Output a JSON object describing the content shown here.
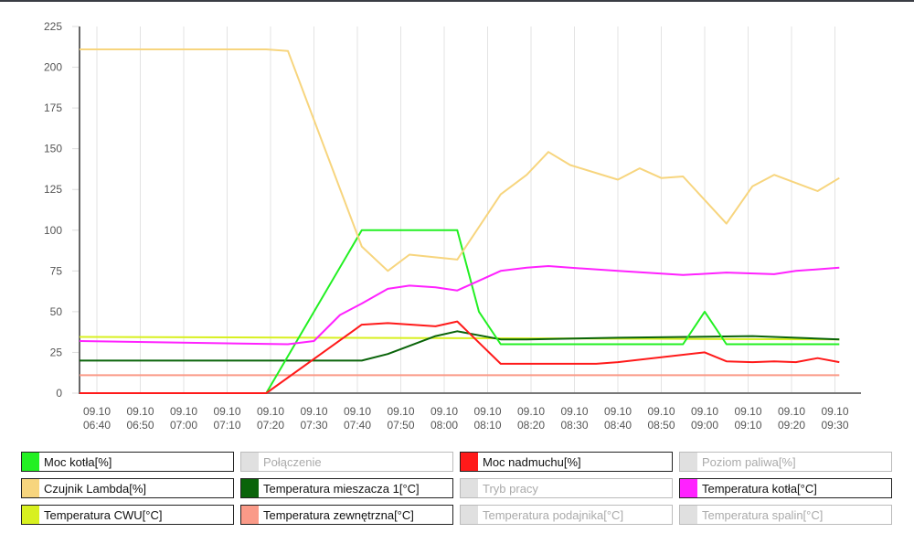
{
  "chart_data": {
    "type": "line",
    "title": "",
    "xlabel": "",
    "ylabel": "",
    "ylim": [
      0,
      225
    ],
    "yticks": [
      0,
      25,
      50,
      75,
      100,
      125,
      150,
      175,
      200,
      225
    ],
    "x_unit": "minutes since 09.10 06:40",
    "xlim": [
      -4,
      176
    ],
    "xticks": [
      {
        "m": 0,
        "d": "09.10",
        "t": "06:40"
      },
      {
        "m": 10,
        "d": "09.10",
        "t": "06:50"
      },
      {
        "m": 20,
        "d": "09.10",
        "t": "07:00"
      },
      {
        "m": 30,
        "d": "09.10",
        "t": "07:10"
      },
      {
        "m": 40,
        "d": "09.10",
        "t": "07:20"
      },
      {
        "m": 50,
        "d": "09.10",
        "t": "07:30"
      },
      {
        "m": 60,
        "d": "09.10",
        "t": "07:40"
      },
      {
        "m": 70,
        "d": "09.10",
        "t": "07:50"
      },
      {
        "m": 80,
        "d": "09.10",
        "t": "08:00"
      },
      {
        "m": 90,
        "d": "09.10",
        "t": "08:10"
      },
      {
        "m": 100,
        "d": "09.10",
        "t": "08:20"
      },
      {
        "m": 110,
        "d": "09.10",
        "t": "08:30"
      },
      {
        "m": 120,
        "d": "09.10",
        "t": "08:40"
      },
      {
        "m": 130,
        "d": "09.10",
        "t": "08:50"
      },
      {
        "m": 140,
        "d": "09.10",
        "t": "09:00"
      },
      {
        "m": 150,
        "d": "09.10",
        "t": "09:10"
      },
      {
        "m": 160,
        "d": "09.10",
        "t": "09:20"
      },
      {
        "m": 170,
        "d": "09.10",
        "t": "09:30"
      }
    ],
    "grid": "vertical",
    "legend_position": "bottom",
    "series": [
      {
        "name": "Moc kotła[%]",
        "color": "#22f022",
        "enabled": true,
        "points": [
          [
            -4,
            0
          ],
          [
            39,
            0
          ],
          [
            61,
            100
          ],
          [
            83,
            100
          ],
          [
            88,
            50
          ],
          [
            93,
            30
          ],
          [
            135,
            30
          ],
          [
            140,
            50
          ],
          [
            145,
            30
          ],
          [
            171,
            30
          ]
        ]
      },
      {
        "name": "Połączenie",
        "color": "#e0e0e0",
        "enabled": false,
        "points": []
      },
      {
        "name": "Moc nadmuchu[%]",
        "color": "#ff1a1a",
        "enabled": true,
        "points": [
          [
            -4,
            0
          ],
          [
            39,
            0
          ],
          [
            61,
            42
          ],
          [
            67,
            43
          ],
          [
            78,
            41
          ],
          [
            83,
            44
          ],
          [
            93,
            18
          ],
          [
            115,
            18
          ],
          [
            120,
            19
          ],
          [
            140,
            25
          ],
          [
            145,
            19.5
          ],
          [
            151,
            19
          ],
          [
            156,
            19.5
          ],
          [
            161,
            19
          ],
          [
            166,
            21.5
          ],
          [
            171,
            19
          ]
        ]
      },
      {
        "name": "Poziom paliwa[%]",
        "color": "#e0e0e0",
        "enabled": false,
        "points": []
      },
      {
        "name": "Czujnik Lambda[%]",
        "color": "#f7d57e",
        "enabled": true,
        "points": [
          [
            -4,
            211
          ],
          [
            39,
            211
          ],
          [
            44,
            210
          ],
          [
            61,
            90
          ],
          [
            67,
            75
          ],
          [
            72,
            85
          ],
          [
            83,
            82
          ],
          [
            93,
            122
          ],
          [
            99,
            134
          ],
          [
            104,
            148
          ],
          [
            109,
            140
          ],
          [
            120,
            131
          ],
          [
            125,
            138
          ],
          [
            130,
            132
          ],
          [
            135,
            133
          ],
          [
            145,
            104
          ],
          [
            151,
            127
          ],
          [
            156,
            134
          ],
          [
            166,
            124
          ],
          [
            171,
            132
          ]
        ]
      },
      {
        "name": "Temperatura mieszacza 1[°C]",
        "color": "#0a640a",
        "enabled": true,
        "points": [
          [
            -4,
            20
          ],
          [
            61,
            20
          ],
          [
            67,
            24
          ],
          [
            78,
            35
          ],
          [
            83,
            38
          ],
          [
            93,
            33
          ],
          [
            99,
            33
          ],
          [
            120,
            34
          ],
          [
            151,
            35
          ],
          [
            171,
            33
          ]
        ]
      },
      {
        "name": "Tryb pracy",
        "color": "#e0e0e0",
        "enabled": false,
        "points": []
      },
      {
        "name": "Temperatura kotła[°C]",
        "color": "#ff22ff",
        "enabled": true,
        "points": [
          [
            -4,
            32
          ],
          [
            44,
            30
          ],
          [
            50,
            32
          ],
          [
            56,
            48
          ],
          [
            61,
            55
          ],
          [
            67,
            64
          ],
          [
            72,
            66
          ],
          [
            78,
            65
          ],
          [
            83,
            63
          ],
          [
            93,
            75
          ],
          [
            99,
            77
          ],
          [
            104,
            78
          ],
          [
            109,
            77
          ],
          [
            120,
            75
          ],
          [
            135,
            72.5
          ],
          [
            145,
            74
          ],
          [
            156,
            73
          ],
          [
            161,
            75
          ],
          [
            171,
            77
          ]
        ]
      },
      {
        "name": "Temperatura CWU[°C]",
        "color": "#d8f020",
        "enabled": true,
        "points": [
          [
            -4,
            34.5
          ],
          [
            171,
            33
          ]
        ]
      },
      {
        "name": "Temperatura zewnętrzna[°C]",
        "color": "#fa9a88",
        "enabled": true,
        "points": [
          [
            -4,
            11
          ],
          [
            171,
            11
          ]
        ]
      },
      {
        "name": "Temperatura podajnika[°C]",
        "color": "#e0e0e0",
        "enabled": false,
        "points": []
      },
      {
        "name": "Temperatura spalin[°C]",
        "color": "#e0e0e0",
        "enabled": false,
        "points": []
      }
    ]
  }
}
